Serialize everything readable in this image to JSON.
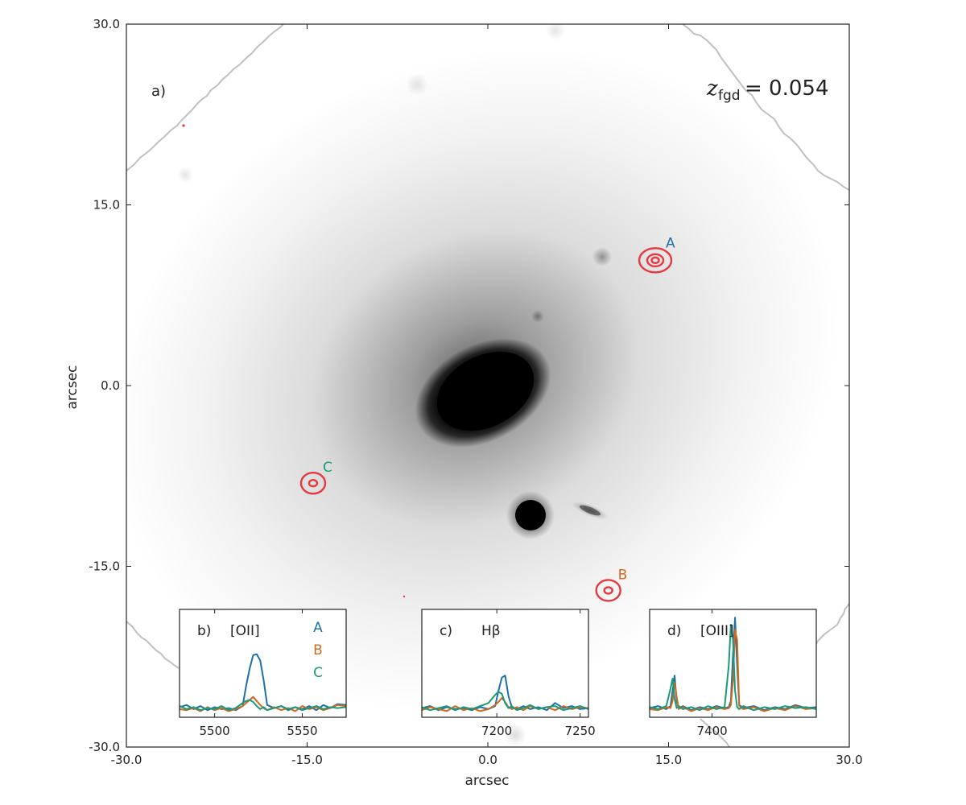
{
  "colors": {
    "series_A": "#1f6fa8",
    "series_B": "#d2691e",
    "series_C": "#1a9b77",
    "contour": "#e8383d",
    "mask_edge": "#c0c0c0",
    "galaxy": "#000000"
  },
  "main": {
    "panel_label": "a)",
    "redshift_symbol": "z",
    "redshift_subscript": "fgd",
    "redshift_value": "= 0.054",
    "xlabel": "arcsec",
    "ylabel": "arcsec"
  },
  "chart_data": [
    {
      "type": "image",
      "panel": "a)",
      "xlabel": "arcsec",
      "ylabel": "arcsec",
      "xlim": [
        -30,
        30
      ],
      "ylim": [
        -30,
        30
      ],
      "xticks": [
        "-30.0",
        "-15.0",
        "0.0",
        "15.0",
        "30.0"
      ],
      "yticks": [
        "30.0",
        "15.0",
        "0.0",
        "-15.0",
        "-30.0"
      ],
      "xtick_values": [
        -30,
        -15,
        0,
        15,
        30
      ],
      "ytick_values": [
        30,
        15,
        0,
        -15,
        -30
      ],
      "sources": [
        {
          "label": "A",
          "x": 13.9,
          "y": 10.4
        },
        {
          "label": "B",
          "x": 10.0,
          "y": -17.0
        },
        {
          "label": "C",
          "x": -14.5,
          "y": -8.1
        }
      ]
    },
    {
      "type": "line",
      "panel": "b)",
      "title": "[OII]",
      "xticks": [
        "5500",
        "5550"
      ],
      "xtick_values": [
        5500,
        5550
      ],
      "xlim": [
        5480,
        5575
      ],
      "ylim": [
        -0.06,
        1.0
      ],
      "legend": [
        "A",
        "B",
        "C"
      ],
      "series": [
        {
          "name": "A",
          "x": [
            5480,
            5484,
            5488,
            5492,
            5496,
            5500,
            5504,
            5508,
            5512,
            5516,
            5518,
            5520,
            5522,
            5524,
            5526,
            5528,
            5530,
            5534,
            5538,
            5542,
            5546,
            5550,
            5554,
            5558,
            5562,
            5566,
            5570,
            5575
          ],
          "y": [
            0.04,
            0.06,
            0.02,
            0.05,
            0.01,
            0.04,
            0.02,
            0.03,
            0.01,
            0.05,
            0.25,
            0.42,
            0.55,
            0.56,
            0.5,
            0.3,
            0.06,
            0.03,
            0.05,
            0.01,
            0.04,
            0.02,
            0.05,
            0.01,
            0.06,
            0.03,
            0.07,
            0.06
          ]
        },
        {
          "name": "B",
          "x": [
            5480,
            5484,
            5488,
            5492,
            5496,
            5500,
            5504,
            5508,
            5512,
            5516,
            5518,
            5520,
            5522,
            5524,
            5526,
            5528,
            5530,
            5534,
            5538,
            5542,
            5546,
            5550,
            5554,
            5558,
            5562,
            5566,
            5570,
            5575
          ],
          "y": [
            0.02,
            0.01,
            0.03,
            0.0,
            0.04,
            0.01,
            0.03,
            0.0,
            0.02,
            0.05,
            0.08,
            0.11,
            0.14,
            0.1,
            0.06,
            0.03,
            0.01,
            0.04,
            0.01,
            0.03,
            0.0,
            0.05,
            0.02,
            0.04,
            0.01,
            0.03,
            0.06,
            0.05
          ]
        },
        {
          "name": "C",
          "x": [
            5480,
            5484,
            5488,
            5492,
            5496,
            5500,
            5504,
            5508,
            5512,
            5516,
            5518,
            5520,
            5522,
            5524,
            5526,
            5528,
            5530,
            5534,
            5538,
            5542,
            5546,
            5550,
            5554,
            5558,
            5562,
            5566,
            5570,
            5575
          ],
          "y": [
            0.05,
            0.02,
            0.04,
            0.01,
            0.03,
            0.02,
            0.05,
            0.01,
            0.03,
            0.08,
            0.1,
            0.11,
            0.09,
            0.05,
            0.02,
            0.04,
            0.01,
            0.03,
            0.05,
            0.02,
            0.04,
            0.01,
            0.03,
            0.05,
            0.02,
            0.04,
            0.03,
            0.04
          ]
        }
      ]
    },
    {
      "type": "line",
      "panel": "c)",
      "title": "Hβ",
      "xticks": [
        "7200",
        "7250"
      ],
      "xtick_values": [
        7200,
        7250
      ],
      "xlim": [
        7155,
        7255
      ],
      "ylim": [
        -0.06,
        1.0
      ],
      "series": [
        {
          "name": "A",
          "x": [
            7155,
            7160,
            7165,
            7170,
            7175,
            7180,
            7185,
            7190,
            7195,
            7199,
            7201,
            7203,
            7205,
            7207,
            7209,
            7212,
            7216,
            7220,
            7225,
            7230,
            7235,
            7240,
            7245,
            7250,
            7255
          ],
          "y": [
            0.03,
            0.05,
            0.01,
            0.04,
            0.02,
            0.03,
            0.01,
            0.04,
            0.02,
            0.05,
            0.2,
            0.33,
            0.35,
            0.15,
            0.04,
            0.02,
            0.05,
            0.02,
            0.04,
            0.01,
            0.08,
            0.03,
            0.05,
            0.02,
            0.03
          ]
        },
        {
          "name": "B",
          "x": [
            7155,
            7160,
            7165,
            7170,
            7175,
            7180,
            7185,
            7190,
            7195,
            7199,
            7201,
            7203,
            7205,
            7207,
            7209,
            7212,
            7216,
            7220,
            7225,
            7230,
            7235,
            7240,
            7245,
            7250,
            7255
          ],
          "y": [
            0.01,
            0.04,
            0.02,
            0.0,
            0.05,
            0.01,
            0.03,
            0.0,
            0.02,
            0.06,
            0.09,
            0.13,
            0.09,
            0.04,
            0.02,
            0.04,
            0.01,
            0.05,
            0.02,
            0.04,
            0.01,
            0.05,
            0.02,
            0.04,
            0.03
          ]
        },
        {
          "name": "C",
          "x": [
            7155,
            7160,
            7165,
            7170,
            7175,
            7180,
            7185,
            7190,
            7195,
            7199,
            7201,
            7203,
            7205,
            7207,
            7209,
            7212,
            7216,
            7220,
            7225,
            7230,
            7235,
            7240,
            7245,
            7250,
            7255
          ],
          "y": [
            0.04,
            0.01,
            0.03,
            0.05,
            0.01,
            0.04,
            0.02,
            0.05,
            0.08,
            0.16,
            0.19,
            0.17,
            0.08,
            0.03,
            0.05,
            0.01,
            0.03,
            0.06,
            0.02,
            0.04,
            0.05,
            0.01,
            0.03,
            0.05,
            0.02
          ]
        }
      ]
    },
    {
      "type": "line",
      "panel": "d)",
      "title": "[OIII]",
      "xticks": [
        "7400"
      ],
      "xtick_values": [
        7400
      ],
      "xlim": [
        7340,
        7500
      ],
      "ylim": [
        -0.06,
        1.0
      ],
      "series": [
        {
          "name": "A",
          "x": [
            7340,
            7348,
            7356,
            7360,
            7362,
            7364,
            7366,
            7368,
            7372,
            7380,
            7388,
            7396,
            7404,
            7412,
            7416,
            7418,
            7420,
            7422,
            7424,
            7426,
            7430,
            7440,
            7450,
            7460,
            7470,
            7480,
            7490,
            7500
          ],
          "y": [
            0.03,
            0.05,
            0.02,
            0.05,
            0.2,
            0.35,
            0.1,
            0.03,
            0.05,
            0.01,
            0.04,
            0.02,
            0.05,
            0.03,
            0.04,
            0.1,
            0.55,
            0.92,
            0.45,
            0.06,
            0.03,
            0.05,
            0.01,
            0.04,
            0.02,
            0.06,
            0.03,
            0.04
          ]
        },
        {
          "name": "B",
          "x": [
            7340,
            7348,
            7356,
            7360,
            7362,
            7364,
            7366,
            7368,
            7372,
            7380,
            7388,
            7396,
            7404,
            7412,
            7416,
            7418,
            7420,
            7422,
            7424,
            7426,
            7430,
            7440,
            7450,
            7460,
            7470,
            7480,
            7490,
            7500
          ],
          "y": [
            0.02,
            0.01,
            0.04,
            0.03,
            0.1,
            0.28,
            0.14,
            0.02,
            0.04,
            0.0,
            0.03,
            0.01,
            0.04,
            0.02,
            0.03,
            0.06,
            0.3,
            0.8,
            0.7,
            0.05,
            0.02,
            0.04,
            0.0,
            0.03,
            0.01,
            0.05,
            0.02,
            0.03
          ]
        },
        {
          "name": "C",
          "x": [
            7340,
            7348,
            7356,
            7360,
            7362,
            7364,
            7366,
            7368,
            7372,
            7380,
            7388,
            7396,
            7404,
            7412,
            7416,
            7418,
            7420,
            7422,
            7424,
            7426,
            7430,
            7440,
            7450,
            7460,
            7470,
            7480,
            7490,
            7500
          ],
          "y": [
            0.04,
            0.02,
            0.05,
            0.22,
            0.32,
            0.12,
            0.03,
            0.05,
            0.02,
            0.04,
            0.01,
            0.05,
            0.02,
            0.04,
            0.45,
            0.85,
            0.7,
            0.2,
            0.04,
            0.02,
            0.05,
            0.01,
            0.04,
            0.02,
            0.05,
            0.03,
            0.04,
            0.02
          ]
        }
      ]
    }
  ]
}
